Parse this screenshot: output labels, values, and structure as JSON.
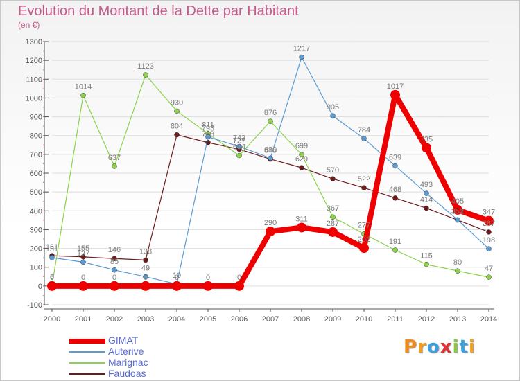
{
  "title": "Evolution du Montant de la Dette par Habitant",
  "subtitle": "(en €)",
  "logo": "Proxiti",
  "colors": {
    "title": "#c75a8b",
    "axis": "#555555",
    "grid": "#dddddd",
    "label": "#7a7a7a",
    "logo_letters": [
      "#f08a1c",
      "#f0a020",
      "#3aa0e0",
      "#e03030",
      "#8cc63f",
      "#3aa0e0",
      "#f0a020"
    ]
  },
  "chart_data": {
    "type": "line",
    "x": [
      "2000",
      "2001",
      "2002",
      "2003",
      "2004",
      "2005",
      "2006",
      "2007",
      "2008",
      "2009",
      "2010",
      "2011",
      "2012",
      "2013",
      "2014"
    ],
    "ylim": [
      -100,
      1300
    ],
    "yticks": [
      -100,
      0,
      100,
      200,
      300,
      400,
      500,
      600,
      700,
      800,
      900,
      1000,
      1100,
      1200,
      1300
    ],
    "grid": true,
    "legend": "bottom-left",
    "series": [
      {
        "name": "GIMAT",
        "color": "#ee0000",
        "width": 8,
        "values": [
          0,
          0,
          0,
          0,
          0,
          0,
          0,
          290,
          311,
          287,
          202,
          1017,
          735,
          405,
          347
        ],
        "labels": [
          "0",
          "0",
          "0",
          "0",
          "0",
          "0",
          "0",
          "290",
          "311",
          "287",
          "202",
          "1017",
          "735",
          "405",
          "347"
        ]
      },
      {
        "name": "Auterive",
        "color": "#5b9bd5",
        "width": 1.2,
        "values": [
          151,
          127,
          85,
          49,
          10,
          793,
          742,
          680,
          1217,
          905,
          784,
          639,
          493,
          352,
          198
        ],
        "labels": [
          "151",
          "127",
          "85",
          "49",
          "10",
          "793",
          "742",
          "680",
          "1217",
          "905",
          "784",
          "639",
          "493",
          "352",
          "198"
        ]
      },
      {
        "name": "Marignac",
        "color": "#8cd24a",
        "width": 1.2,
        "values": [
          3,
          1014,
          637,
          1123,
          930,
          811,
          694,
          876,
          699,
          367,
          277,
          191,
          115,
          80,
          47
        ],
        "labels": [
          "3",
          "1014",
          "637",
          "1123",
          "930",
          "811",
          "694",
          "876",
          "699",
          "367",
          "277",
          "191",
          "115",
          "80",
          "47"
        ]
      },
      {
        "name": "Faudoas",
        "color": "#6e1a1a",
        "width": 1.2,
        "values": [
          161,
          155,
          146,
          138,
          804,
          763,
          727,
          675,
          629,
          570,
          522,
          468,
          414,
          351,
          287
        ],
        "labels": [
          "161",
          "155",
          "146",
          "138",
          "804",
          "763",
          "727",
          "675",
          "629",
          "570",
          "522",
          "468",
          "414",
          "351",
          "287"
        ]
      }
    ]
  }
}
